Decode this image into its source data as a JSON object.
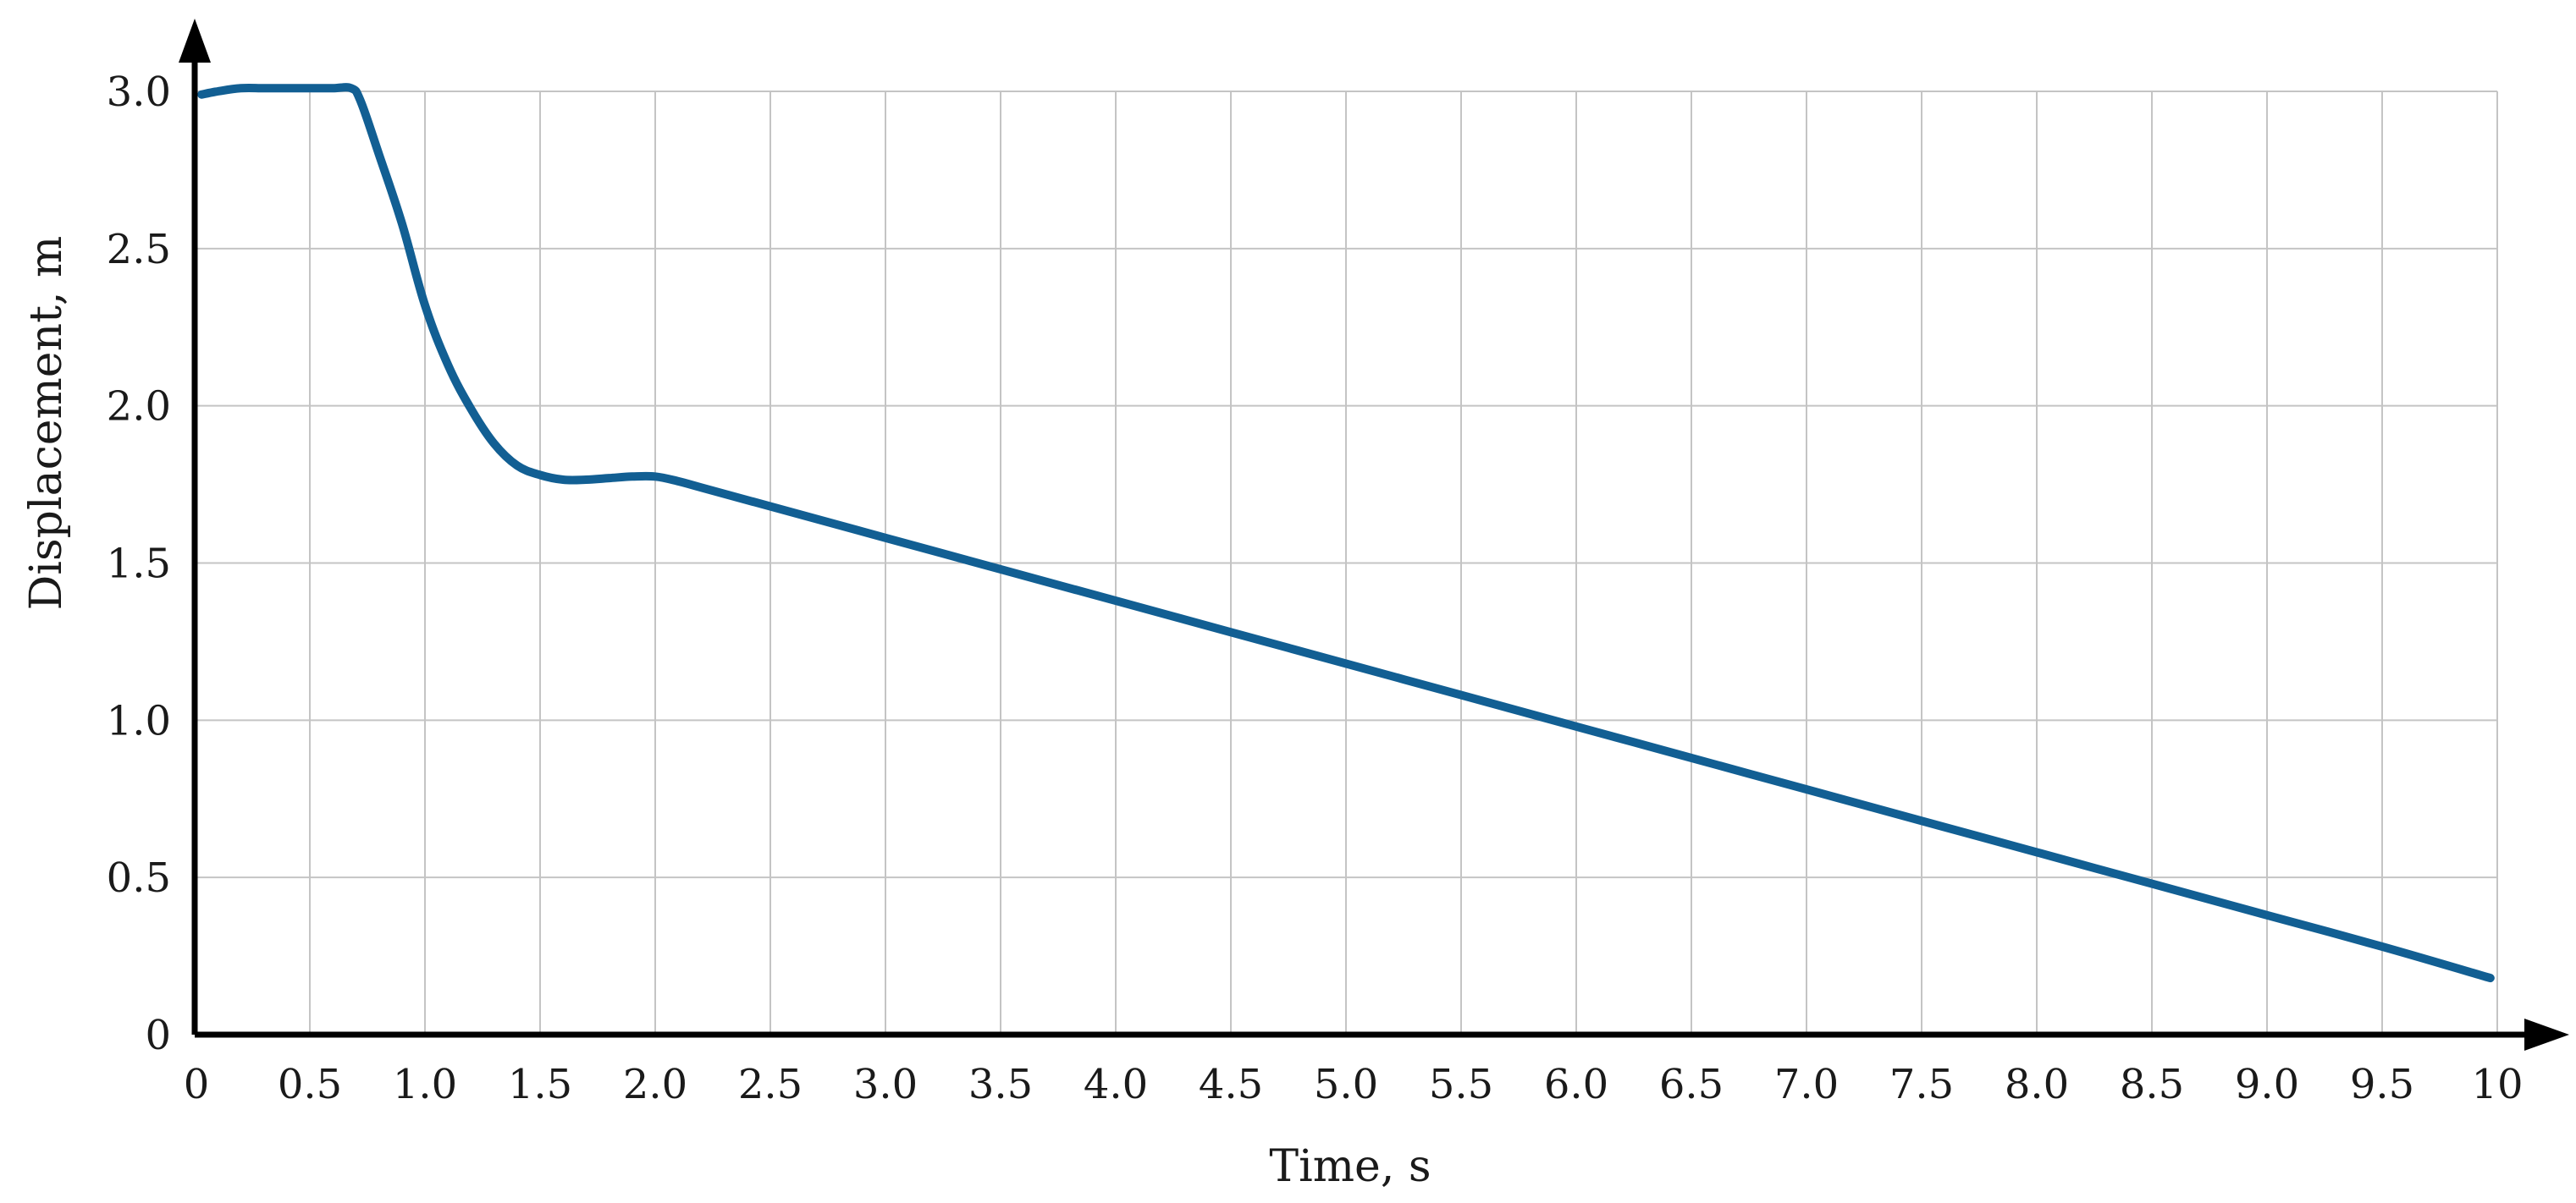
{
  "chart_data": {
    "type": "line",
    "title": "",
    "xlabel": "Time, s",
    "ylabel": "Displacement, m",
    "xlim": [
      0,
      10
    ],
    "ylim": [
      0,
      3.0
    ],
    "grid": true,
    "x_ticks": [
      {
        "value": 0,
        "label": "0"
      },
      {
        "value": 0.5,
        "label": "0.5"
      },
      {
        "value": 1.0,
        "label": "1.0"
      },
      {
        "value": 1.5,
        "label": "1.5"
      },
      {
        "value": 2.0,
        "label": "2.0"
      },
      {
        "value": 2.5,
        "label": "2.5"
      },
      {
        "value": 3.0,
        "label": "3.0"
      },
      {
        "value": 3.5,
        "label": "3.5"
      },
      {
        "value": 4.0,
        "label": "4.0"
      },
      {
        "value": 4.5,
        "label": "4.5"
      },
      {
        "value": 5.0,
        "label": "5.0"
      },
      {
        "value": 5.5,
        "label": "5.5"
      },
      {
        "value": 6.0,
        "label": "6.0"
      },
      {
        "value": 6.5,
        "label": "6.5"
      },
      {
        "value": 7.0,
        "label": "7.0"
      },
      {
        "value": 7.5,
        "label": "7.5"
      },
      {
        "value": 8.0,
        "label": "8.0"
      },
      {
        "value": 8.5,
        "label": "8.5"
      },
      {
        "value": 9.0,
        "label": "9.0"
      },
      {
        "value": 9.5,
        "label": "9.5"
      },
      {
        "value": 10,
        "label": "10"
      }
    ],
    "y_ticks": [
      {
        "value": 0,
        "label": "0"
      },
      {
        "value": 0.5,
        "label": "0.5"
      },
      {
        "value": 1.0,
        "label": "1.0"
      },
      {
        "value": 1.5,
        "label": "1.5"
      },
      {
        "value": 2.0,
        "label": "2.0"
      },
      {
        "value": 2.5,
        "label": "2.5"
      },
      {
        "value": 3.0,
        "label": "3.0"
      }
    ],
    "series": [
      {
        "color": "#125f93",
        "x": [
          0.03,
          0.1,
          0.2,
          0.3,
          0.4,
          0.5,
          0.6,
          0.68,
          0.72,
          0.8,
          0.9,
          1.0,
          1.1,
          1.2,
          1.3,
          1.4,
          1.5,
          1.6,
          1.7,
          1.8,
          1.9,
          2.0,
          2.1,
          2.2,
          2.5,
          3.0,
          3.5,
          4.0,
          4.5,
          5.0,
          5.5,
          6.0,
          6.5,
          7.0,
          7.5,
          8.0,
          8.5,
          9.0,
          9.5,
          9.97
        ],
        "y": [
          2.99,
          3.0,
          3.01,
          3.01,
          3.01,
          3.01,
          3.01,
          3.01,
          2.97,
          2.8,
          2.58,
          2.32,
          2.13,
          1.99,
          1.88,
          1.81,
          1.78,
          1.765,
          1.765,
          1.77,
          1.775,
          1.775,
          1.76,
          1.74,
          1.68,
          1.58,
          1.48,
          1.38,
          1.28,
          1.18,
          1.08,
          0.98,
          0.88,
          0.78,
          0.68,
          0.58,
          0.48,
          0.38,
          0.28,
          0.18
        ]
      }
    ]
  }
}
